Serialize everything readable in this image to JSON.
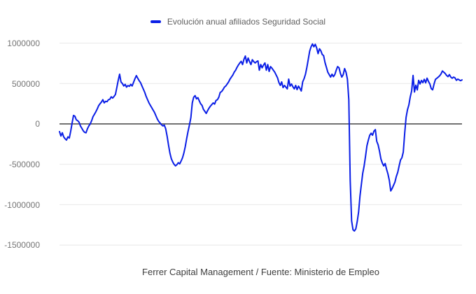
{
  "legend": {
    "label": "Evolución anual afiliados Seguridad Social"
  },
  "caption": "Ferrer Capital Management / Fuente: Ministerio de Empleo",
  "colors": {
    "series": "#0a1ee6",
    "grid": "#e8e8e8",
    "baseline": "#434343",
    "tick_text": "#757575",
    "legend_text": "#5f5f5f",
    "caption_text": "#3d3d3d",
    "background": "#ffffff"
  },
  "y_axis": {
    "ticks": [
      "1000000",
      "500000",
      "0",
      "-500000",
      "-1000000",
      "-1500000"
    ]
  },
  "chart_data": {
    "type": "line",
    "title": "",
    "xlabel": "",
    "ylabel": "",
    "legend_position": "top",
    "legend_entries": [
      "Evolución anual afiliados Seguridad Social"
    ],
    "grid": true,
    "x_tick_labels": [],
    "y_ticks": [
      1000000,
      500000,
      0,
      -500000,
      -1000000,
      -1500000
    ],
    "ylim": [
      -1500000,
      1000000
    ],
    "series": [
      {
        "name": "Evolución anual afiliados Seguridad Social",
        "values": [
          -95000,
          -150000,
          -110000,
          -160000,
          -185000,
          -200000,
          -160000,
          -175000,
          -90000,
          10000,
          105000,
          95000,
          50000,
          40000,
          20000,
          -25000,
          -55000,
          -85000,
          -105000,
          -110000,
          -60000,
          -25000,
          0,
          40000,
          90000,
          120000,
          150000,
          185000,
          225000,
          250000,
          270000,
          300000,
          260000,
          280000,
          275000,
          300000,
          305000,
          335000,
          320000,
          340000,
          365000,
          450000,
          540000,
          615000,
          520000,
          500000,
          470000,
          490000,
          455000,
          475000,
          465000,
          490000,
          470000,
          515000,
          560000,
          598000,
          565000,
          535000,
          510000,
          470000,
          430000,
          390000,
          340000,
          300000,
          260000,
          230000,
          200000,
          170000,
          140000,
          100000,
          60000,
          30000,
          10000,
          -10000,
          -25000,
          -15000,
          -60000,
          -150000,
          -260000,
          -360000,
          -430000,
          -470000,
          -500000,
          -520000,
          -505000,
          -480000,
          -495000,
          -460000,
          -420000,
          -360000,
          -280000,
          -180000,
          -90000,
          -10000,
          80000,
          260000,
          330000,
          350000,
          310000,
          325000,
          285000,
          250000,
          230000,
          180000,
          155000,
          130000,
          165000,
          195000,
          220000,
          240000,
          260000,
          245000,
          290000,
          300000,
          330000,
          390000,
          400000,
          425000,
          455000,
          470000,
          495000,
          520000,
          555000,
          580000,
          605000,
          640000,
          665000,
          700000,
          730000,
          755000,
          775000,
          735000,
          800000,
          840000,
          755000,
          815000,
          770000,
          735000,
          795000,
          770000,
          755000,
          770000,
          780000,
          665000,
          735000,
          695000,
          730000,
          755000,
          665000,
          735000,
          650000,
          710000,
          690000,
          665000,
          640000,
          605000,
          570000,
          510000,
          477000,
          520000,
          450000,
          477000,
          455000,
          433000,
          555000,
          468000,
          494000,
          460000,
          433000,
          477000,
          425000,
          468000,
          440000,
          407000,
          520000,
          560000,
          615000,
          700000,
          800000,
          900000,
          955000,
          990000,
          955000,
          985000,
          940000,
          870000,
          930000,
          905000,
          860000,
          845000,
          760000,
          700000,
          640000,
          610000,
          580000,
          615000,
          585000,
          610000,
          665000,
          710000,
          695000,
          625000,
          580000,
          610000,
          685000,
          640000,
          555000,
          300000,
          -700000,
          -1200000,
          -1310000,
          -1326000,
          -1300000,
          -1210000,
          -1090000,
          -890000,
          -745000,
          -610000,
          -520000,
          -400000,
          -270000,
          -200000,
          -140000,
          -115000,
          -140000,
          -90000,
          -70000,
          -215000,
          -260000,
          -340000,
          -435000,
          -485000,
          -520000,
          -490000,
          -560000,
          -620000,
          -700000,
          -830000,
          -800000,
          -760000,
          -720000,
          -650000,
          -600000,
          -520000,
          -445000,
          -420000,
          -350000,
          -120000,
          80000,
          175000,
          235000,
          335000,
          410000,
          600000,
          395000,
          480000,
          420000,
          540000,
          495000,
          538000,
          510000,
          552000,
          509000,
          566000,
          525000,
          494000,
          436000,
          422000,
          494000,
          552000,
          565000,
          580000,
          595000,
          620000,
          655000,
          640000,
          624000,
          600000,
          585000,
          610000,
          580000,
          565000,
          580000,
          570000,
          540000,
          555000,
          545000,
          535000,
          545000
        ]
      }
    ]
  }
}
